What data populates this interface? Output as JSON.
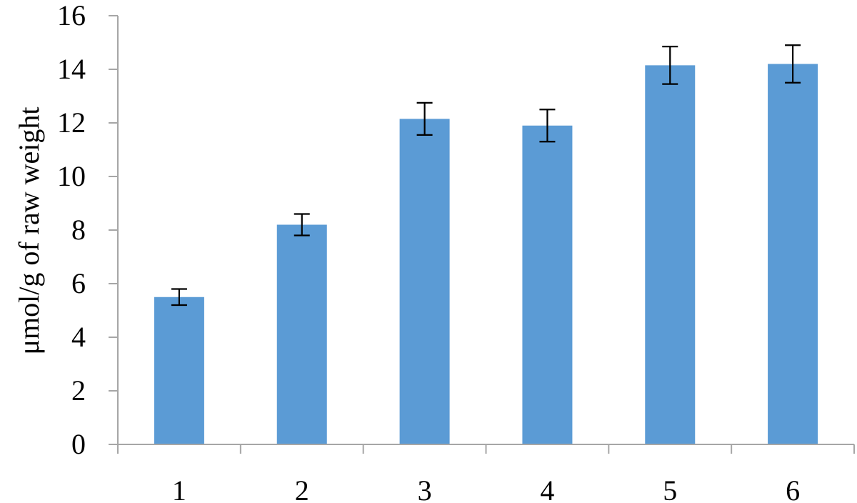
{
  "chart_data": {
    "type": "bar",
    "categories": [
      "1",
      "2",
      "3",
      "4",
      "5",
      "6"
    ],
    "values": [
      5.5,
      8.2,
      12.15,
      11.9,
      14.15,
      14.2
    ],
    "error": [
      0.3,
      0.4,
      0.6,
      0.6,
      0.7,
      0.7
    ],
    "title": "",
    "xlabel": "",
    "ylabel": "μmol/g of raw weight",
    "ylim": [
      0,
      16
    ],
    "yticks": [
      0,
      2,
      4,
      6,
      8,
      10,
      12,
      14,
      16
    ],
    "grid": false,
    "legend": "none",
    "colors": {
      "bar": "#5b9bd5",
      "axis": "#a6a6a6",
      "error_bar": "#000000",
      "text": "#000000"
    }
  }
}
